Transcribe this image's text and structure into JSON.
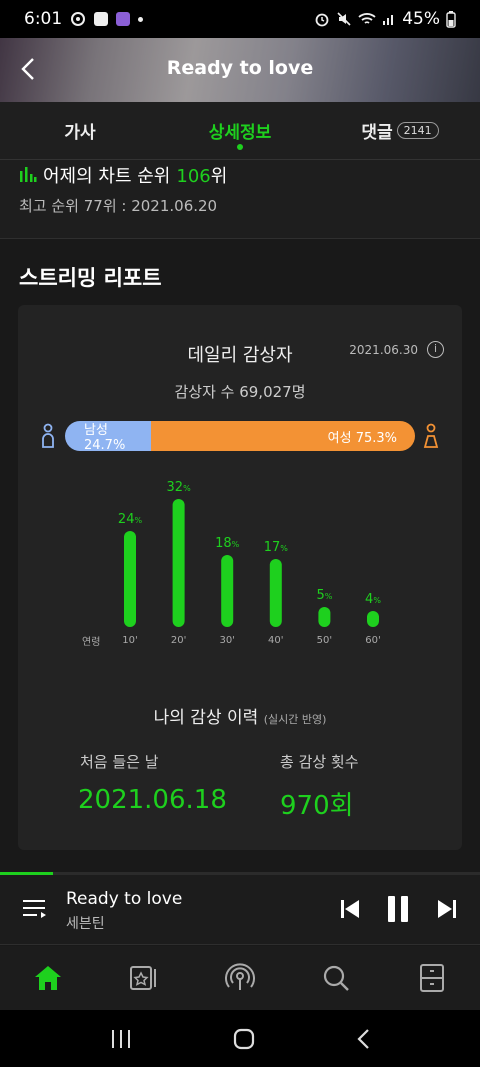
{
  "status": {
    "time": "6:01",
    "battery": "45%"
  },
  "header": {
    "title": "Ready to love"
  },
  "tabs": [
    {
      "label": "가사"
    },
    {
      "label": "상세정보"
    },
    {
      "label": "댓글",
      "badge": "2141"
    }
  ],
  "rank": {
    "prefix": "어제의 차트 순위",
    "value": "106",
    "suffix": "위",
    "best": "최고 순위 77위 : 2021.06.20"
  },
  "streaming": {
    "section_title": "스트리밍 리포트",
    "card_title": "데일리 감상자",
    "date": "2021.06.30",
    "listeners": "감상자 수 69,027명",
    "male_label": "남성 24.7%",
    "female_label": "여성 75.3%",
    "male_ratio": 0.247,
    "age_axis_label": "연령"
  },
  "chart_data": {
    "type": "bar",
    "categories": [
      "10'",
      "20'",
      "30'",
      "40'",
      "50'",
      "60'"
    ],
    "values": [
      24,
      32,
      18,
      17,
      5,
      4
    ],
    "unit": "%",
    "color": "#1ed01e"
  },
  "history": {
    "title": "나의 감상 이력",
    "note": "(실시간 반영)",
    "first_label": "처음 들은 날",
    "first_value": "2021.06.18",
    "count_label": "총 감상 횟수",
    "count_value": "970회"
  },
  "player": {
    "title": "Ready to love",
    "artist": "세븐틴",
    "progress": 0.11
  },
  "colors": {
    "accent": "#1ed01e",
    "male": "#8fb4f2",
    "female": "#f39234"
  }
}
